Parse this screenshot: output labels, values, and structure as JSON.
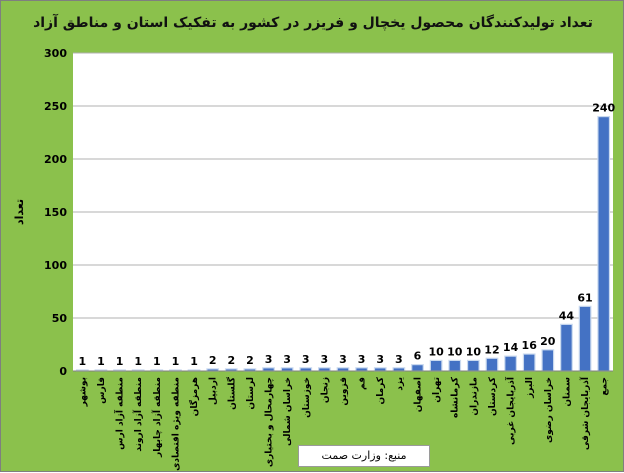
{
  "chart_data": {
    "type": "bar",
    "title": "تعداد تولیدکنندگان محصول یخچال و فریزر در کشور به تفکیک استان و مناطق آزاد",
    "ylabel": "تعداد",
    "xlabel": "",
    "ylim": [
      0,
      300
    ],
    "yticks": [
      "0",
      "50",
      "100",
      "150",
      "200",
      "250",
      "300"
    ],
    "grid": true,
    "bar_color": "#4472c4",
    "background_color": "#8bc14c",
    "categories": [
      "بوشهر",
      "فارس",
      "منطقه آزاد ارس",
      "منطقه آزاد اروند",
      "منطقه آزاد چابهار",
      "منطقه ویژه اقتصادی",
      "هرمزگان",
      "اردبیل",
      "گلستان",
      "لرستان",
      "چهارمحال و بختیاری",
      "خراسان شمالی",
      "خوزستان",
      "زنجان",
      "قزوین",
      "قم",
      "کرمان",
      "یزد",
      "اصفهان",
      "تهران",
      "کرمانشاه",
      "مازندران",
      "کردستان",
      "آذربایجان غربی",
      "البرز",
      "خراسان رضوی",
      "سمنان",
      "آذربایجان شرقی",
      "جمع"
    ],
    "values": [
      1,
      1,
      1,
      1,
      1,
      1,
      1,
      2,
      2,
      2,
      3,
      3,
      3,
      3,
      3,
      3,
      3,
      3,
      6,
      10,
      10,
      10,
      12,
      14,
      16,
      20,
      44,
      61,
      240
    ]
  },
  "source": "منبع: وزارت صمت"
}
